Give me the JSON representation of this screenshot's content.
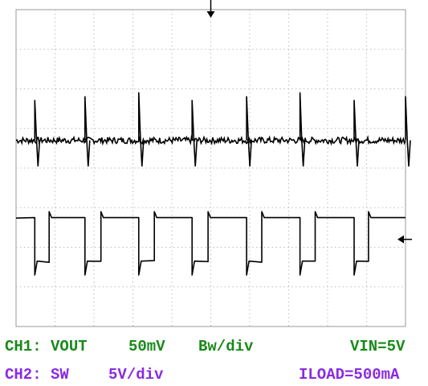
{
  "colors": {
    "label_green": "#1a8a1a",
    "label_violet": "#8a2be2",
    "trace": "#000000",
    "grid": "#bdbdbd",
    "frame": "#9a9a9a"
  },
  "labels": {
    "ch1_name": "CH1: VOUT",
    "ch1_scale": "50mV",
    "ch1_unit": "Bw/div",
    "vin": "VIN=5V",
    "ch2_name": "CH2: SW",
    "ch2_scale": "5V/div",
    "iload": "ILOAD=500mA"
  },
  "chart_data": {
    "type": "line",
    "grid": true,
    "divisions": {
      "horizontal": 10,
      "vertical": 8
    },
    "x_range_div": [
      0,
      10
    ],
    "markers": {
      "trigger_position": "top-center",
      "ch2_ground_marker": "right-edge"
    },
    "series": [
      {
        "name": "CH1: VOUT",
        "channel": 1,
        "baseline_div": 4.7,
        "ripple_div": 0.1,
        "spike_div": 1.2,
        "spike_times_div": [
          0.48,
          1.77,
          3.15,
          4.52,
          5.92,
          7.29,
          8.68,
          10.0
        ]
      },
      {
        "name": "CH2: SW",
        "channel": 2,
        "high_div": 2.75,
        "low_div": 1.65,
        "period_div": 1.39,
        "fall_times_div": [
          0.48,
          1.77,
          3.15,
          4.52,
          5.92,
          7.29,
          8.68
        ],
        "rise_times_div": [
          0.85,
          2.18,
          3.55,
          4.93,
          6.31,
          7.68,
          9.05
        ]
      }
    ]
  }
}
